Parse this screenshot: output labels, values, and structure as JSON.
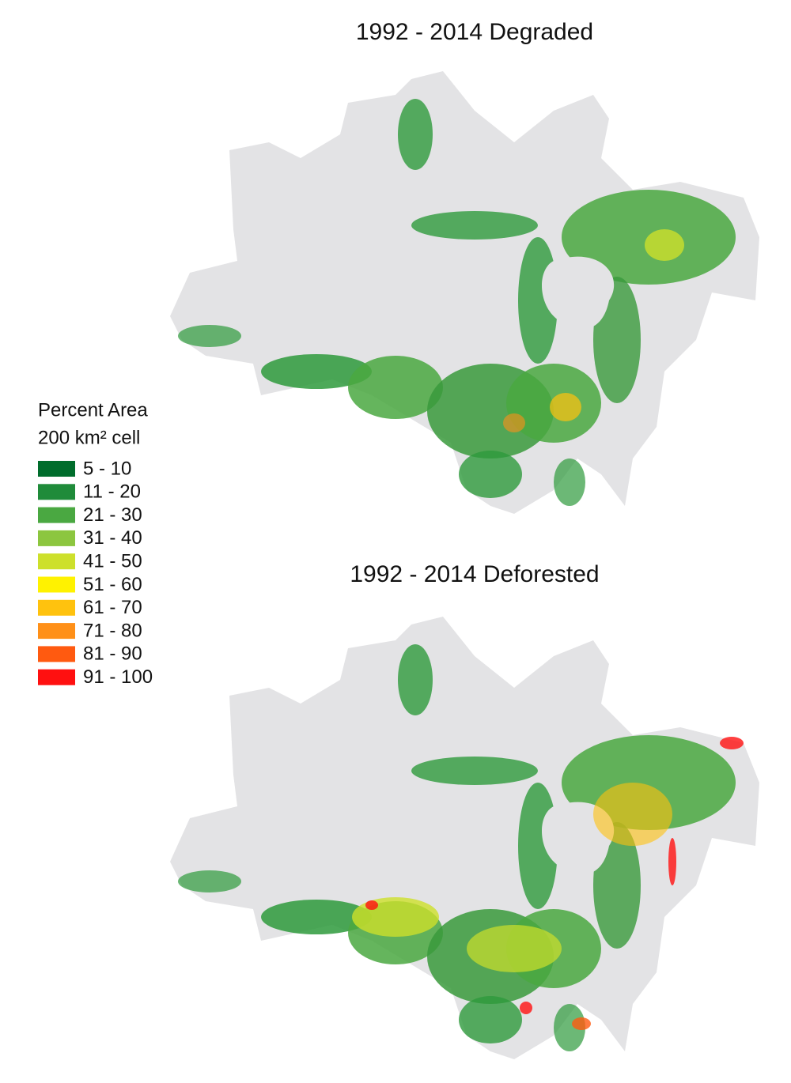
{
  "maps": [
    {
      "title": "1992 - 2014 Degraded"
    },
    {
      "title": "1992 - 2014 Deforested"
    }
  ],
  "legend": {
    "title": "Percent Area",
    "subtitle": "200 km² cell",
    "items": [
      {
        "label": "5 - 10",
        "color": "#006d2c"
      },
      {
        "label": "11 - 20",
        "color": "#1f8b3a"
      },
      {
        "label": "21 - 30",
        "color": "#4aa841"
      },
      {
        "label": "31 - 40",
        "color": "#8cc63f"
      },
      {
        "label": "41 - 50",
        "color": "#cde02b"
      },
      {
        "label": "51 - 60",
        "color": "#fff200"
      },
      {
        "label": "61 - 70",
        "color": "#ffc20e"
      },
      {
        "label": "71 - 80",
        "color": "#ff9018"
      },
      {
        "label": "81 - 90",
        "color": "#ff5a10"
      },
      {
        "label": "91 - 100",
        "color": "#ff1010"
      }
    ]
  }
}
